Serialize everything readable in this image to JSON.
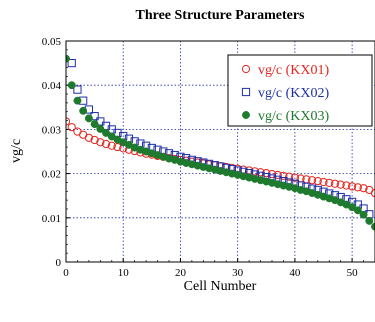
{
  "chart_data": {
    "type": "scatter",
    "title": "Three Structure Parameters",
    "xlabel": "Cell Number",
    "ylabel": "vg/c",
    "xlim": [
      0,
      54
    ],
    "ylim": [
      0,
      0.05
    ],
    "x_ticks": [
      0,
      10,
      20,
      30,
      40,
      50
    ],
    "y_ticks": [
      0,
      0.01,
      0.02,
      0.03,
      0.04,
      0.05
    ],
    "y_tick_labels": [
      "0",
      "0.01",
      "0.02",
      "0.03",
      "0.04",
      "0.05"
    ],
    "grid": "dotted",
    "legend_position": "top-right",
    "series": [
      {
        "name": "vg/c (KX01)",
        "marker": "open-circle",
        "color": "#e8241c",
        "x": [
          0,
          1,
          2,
          3,
          4,
          5,
          6,
          7,
          8,
          9,
          10,
          11,
          12,
          13,
          14,
          15,
          16,
          17,
          18,
          19,
          20,
          21,
          22,
          23,
          24,
          25,
          26,
          27,
          28,
          29,
          30,
          31,
          32,
          33,
          34,
          35,
          36,
          37,
          38,
          39,
          40,
          41,
          42,
          43,
          44,
          45,
          46,
          47,
          48,
          49,
          50,
          51,
          52,
          53,
          54
        ],
        "y": [
          0.0318,
          0.0305,
          0.0295,
          0.0288,
          0.0281,
          0.0276,
          0.0271,
          0.0267,
          0.0263,
          0.026,
          0.0257,
          0.0254,
          0.0251,
          0.0248,
          0.0245,
          0.0243,
          0.024,
          0.0238,
          0.0235,
          0.0233,
          0.0231,
          0.0229,
          0.0227,
          0.0225,
          0.0223,
          0.0221,
          0.0219,
          0.0217,
          0.0215,
          0.0213,
          0.0211,
          0.0209,
          0.0207,
          0.0205,
          0.0203,
          0.0201,
          0.0199,
          0.0197,
          0.0195,
          0.0193,
          0.0191,
          0.0189,
          0.0187,
          0.0185,
          0.0183,
          0.0181,
          0.0179,
          0.0177,
          0.0175,
          0.0173,
          0.0171,
          0.0169,
          0.0167,
          0.0163,
          0.0156
        ]
      },
      {
        "name": "vg/c (KX02)",
        "marker": "open-square",
        "color": "#1e2fa8",
        "x": [
          1,
          2,
          3,
          4,
          5,
          6,
          7,
          8,
          9,
          10,
          11,
          12,
          13,
          14,
          15,
          16,
          17,
          18,
          19,
          20,
          21,
          22,
          23,
          24,
          25,
          26,
          27,
          28,
          29,
          30,
          31,
          32,
          33,
          34,
          35,
          36,
          37,
          38,
          39,
          40,
          41,
          42,
          43,
          44,
          45,
          46,
          47,
          48,
          49,
          50,
          51,
          52,
          53
        ],
        "y": [
          0.045,
          0.039,
          0.0365,
          0.0345,
          0.033,
          0.0318,
          0.0308,
          0.03,
          0.0292,
          0.0285,
          0.0279,
          0.0273,
          0.0268,
          0.0263,
          0.0258,
          0.0254,
          0.025,
          0.0246,
          0.0242,
          0.0238,
          0.0235,
          0.0231,
          0.0228,
          0.0225,
          0.0222,
          0.0219,
          0.0216,
          0.0213,
          0.021,
          0.0207,
          0.0204,
          0.0201,
          0.0198,
          0.0195,
          0.0192,
          0.0189,
          0.0186,
          0.0183,
          0.018,
          0.0177,
          0.0173,
          0.017,
          0.0166,
          0.0163,
          0.0159,
          0.0155,
          0.0151,
          0.0147,
          0.0142,
          0.0136,
          0.013,
          0.0121,
          0.0108
        ]
      },
      {
        "name": "vg/c (KX03)",
        "marker": "filled-circle",
        "color": "#1e7a2c",
        "x": [
          0,
          1,
          2,
          3,
          4,
          5,
          6,
          7,
          8,
          9,
          10,
          11,
          12,
          13,
          14,
          15,
          16,
          17,
          18,
          19,
          20,
          21,
          22,
          23,
          24,
          25,
          26,
          27,
          28,
          29,
          30,
          31,
          32,
          33,
          34,
          35,
          36,
          37,
          38,
          39,
          40,
          41,
          42,
          43,
          44,
          45,
          46,
          47,
          48,
          49,
          50,
          51,
          52,
          53,
          54
        ],
        "y": [
          0.046,
          0.04,
          0.0365,
          0.0342,
          0.0325,
          0.0312,
          0.0301,
          0.0292,
          0.0284,
          0.0277,
          0.0271,
          0.0265,
          0.0259,
          0.0254,
          0.025,
          0.0246,
          0.0242,
          0.0238,
          0.0234,
          0.0231,
          0.0227,
          0.0224,
          0.0221,
          0.0218,
          0.0215,
          0.0212,
          0.0209,
          0.0206,
          0.0203,
          0.02,
          0.0197,
          0.0194,
          0.0191,
          0.0188,
          0.0185,
          0.0182,
          0.0179,
          0.0176,
          0.0173,
          0.017,
          0.0167,
          0.0163,
          0.016,
          0.0156,
          0.0152,
          0.0148,
          0.0144,
          0.014,
          0.0135,
          0.013,
          0.0124,
          0.0117,
          0.0107,
          0.0093,
          0.008
        ]
      }
    ]
  }
}
